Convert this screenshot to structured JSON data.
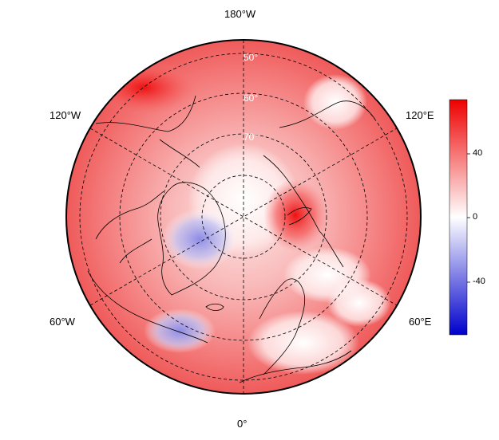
{
  "map": {
    "projection": "north-polar-stereographic",
    "longitude_labels": {
      "top": "180°W",
      "upper_left": "120°W",
      "upper_right": "120°E",
      "lower_left": "60°W",
      "lower_right": "60°E",
      "bottom": "0°"
    },
    "latitude_labels": [
      "50°",
      "60°",
      "70°"
    ],
    "colorbar": {
      "min": -60,
      "max": 60,
      "ticks": [
        "40",
        "0",
        "-40"
      ],
      "colors": {
        "low": "#0000cc",
        "mid": "#ffffff",
        "high": "#ee0000"
      }
    }
  }
}
